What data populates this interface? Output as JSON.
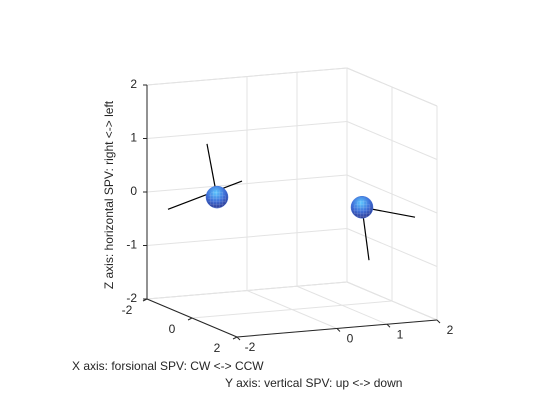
{
  "chart_data": {
    "type": "scatter3d",
    "xlabel": "X axis: forsional SPV: CW <-> CCW",
    "ylabel": "Y axis: vertical SPV: up <-> down",
    "zlabel": "Z axis: horizontal SPV: right <-> left",
    "xlim": [
      -2,
      2
    ],
    "ylim": [
      -2,
      2
    ],
    "zlim": [
      -2,
      2
    ],
    "xticks": [
      -2,
      0,
      2
    ],
    "yticks": [
      -2,
      0,
      1,
      2
    ],
    "zticks": [
      -2,
      -1,
      0,
      1,
      2
    ],
    "grid": true,
    "color": "#3f6fd8",
    "points": [
      {
        "x": 0,
        "y": -1.5,
        "z": 0.22
      },
      {
        "x": 0,
        "y": 1.4,
        "z": -0.2
      }
    ],
    "segments": [
      {
        "x": [
          0,
          0
        ],
        "y": [
          -1.5,
          -1.7
        ],
        "z": [
          0.22,
          1.23
        ]
      },
      {
        "x": [
          0,
          0
        ],
        "y": [
          -2.48,
          -1
        ],
        "z": [
          0.07,
          0.48
        ]
      },
      {
        "x": [
          0,
          0
        ],
        "y": [
          1.4,
          1.54
        ],
        "z": [
          -0.2,
          -1.2
        ]
      },
      {
        "x": [
          0,
          0
        ],
        "y": [
          1.4,
          2.46
        ],
        "z": [
          -0.2,
          -0.47
        ]
      }
    ]
  }
}
